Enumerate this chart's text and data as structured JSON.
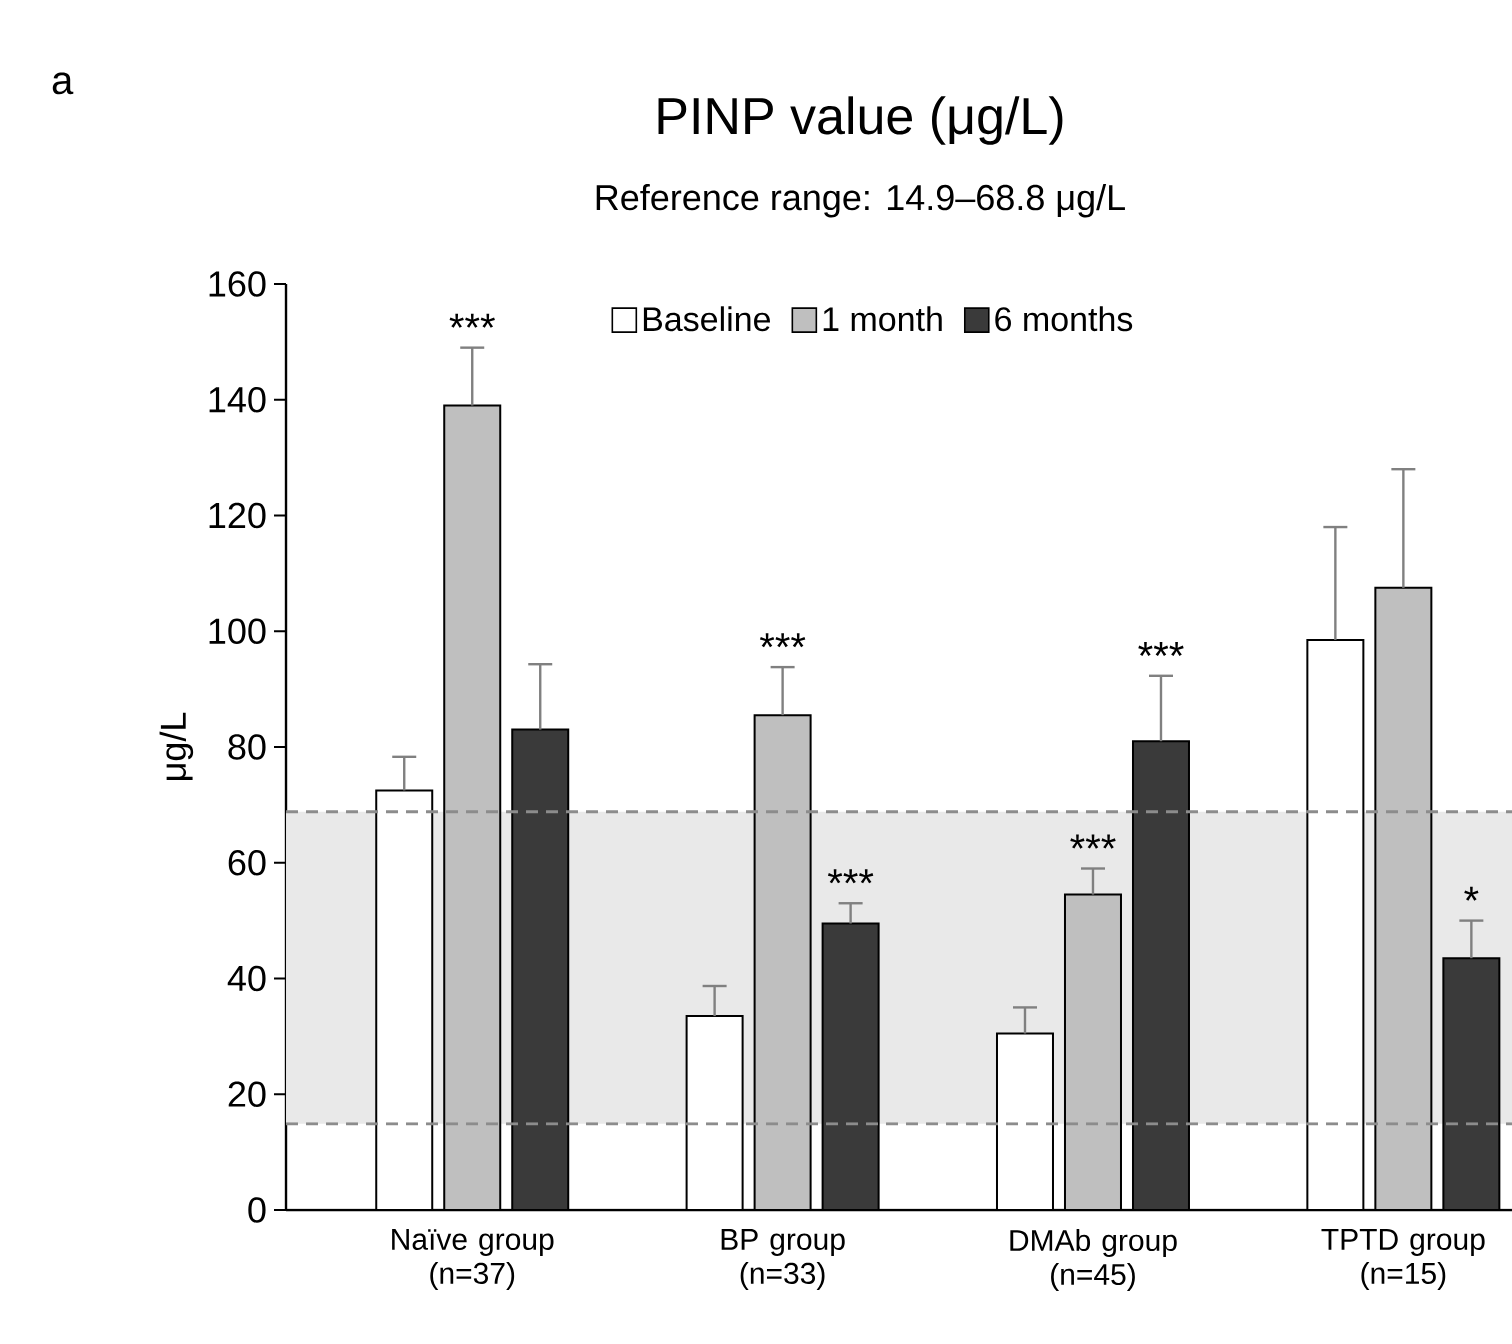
{
  "chart_data": {
    "type": "bar",
    "title": "PINP value (μg/L)",
    "subtitle": "Reference range: 14.9–68.8 μg/L",
    "ylabel": "μg/L",
    "annotations": [
      "a"
    ],
    "categories": [
      "Naïve group (n=37)",
      "BP group (n=33)",
      "DMAb group (n=45)",
      "TPTD group (n=15)"
    ],
    "series": [
      {
        "name": "Baseline",
        "color": "#ffffff",
        "values": [
          72.5,
          33.5,
          30.5,
          98.5
        ],
        "errors": [
          [
            72.5,
            78.3
          ],
          [
            33.5,
            38.7
          ],
          [
            30.5,
            35
          ],
          [
            98.5,
            118
          ]
        ],
        "value_labels": [
          null,
          null,
          null,
          null
        ]
      },
      {
        "name": "1 month",
        "color": "#bfbfbf",
        "values": [
          139,
          85.5,
          54.5,
          107.5
        ],
        "errors": [
          [
            139,
            149
          ],
          [
            85.5,
            93.8
          ],
          [
            54.5,
            59
          ],
          [
            107.5,
            128
          ]
        ],
        "value_labels": [
          "***",
          "***",
          "***",
          null
        ]
      },
      {
        "name": "6 months",
        "color": "#3a3a3a",
        "values": [
          83,
          49.5,
          81,
          43.5
        ],
        "errors": [
          [
            83,
            94.3
          ],
          [
            49.5,
            53
          ],
          [
            81,
            92.3
          ],
          [
            43.5,
            50
          ]
        ],
        "value_labels": [
          null,
          "***",
          "***",
          "*"
        ]
      }
    ],
    "ylim": [
      0,
      160
    ],
    "yticks": [
      0,
      20,
      40,
      60,
      80,
      100,
      120,
      140,
      160
    ],
    "bands": [
      {
        "axis": "y",
        "from": 14.9,
        "to": 68.8,
        "color": "#e9e9e9"
      }
    ],
    "ref_lines": [
      {
        "axis": "y",
        "value": 14.9,
        "color": "#8c8c8c",
        "line_style": "dashed"
      },
      {
        "axis": "y",
        "value": 68.8,
        "color": "#8c8c8c",
        "line_style": "dashed"
      }
    ],
    "legend": "top",
    "grid": false
  }
}
